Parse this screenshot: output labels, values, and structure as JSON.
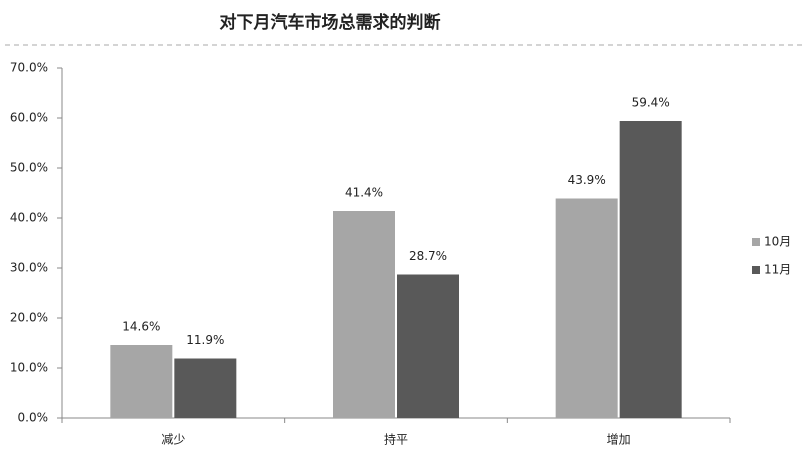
{
  "chart_data": {
    "type": "bar",
    "title": "对下月汽车市场总需求的判断",
    "categories": [
      "减少",
      "持平",
      "增加"
    ],
    "series": [
      {
        "name": "10月",
        "color": "#a6a6a6",
        "values": [
          14.6,
          41.4,
          43.9
        ],
        "value_labels": [
          "14.6%",
          "41.4%",
          "43.9%"
        ]
      },
      {
        "name": "11月",
        "color": "#595959",
        "values": [
          11.9,
          28.7,
          59.4
        ],
        "value_labels": [
          "11.9%",
          "28.7%",
          "59.4%"
        ]
      }
    ],
    "ylim": [
      0,
      70
    ],
    "yticks": [
      {
        "value": 0,
        "label": "0.0%"
      },
      {
        "value": 10,
        "label": "10.0%"
      },
      {
        "value": 20,
        "label": "20.0%"
      },
      {
        "value": 30,
        "label": "30.0%"
      },
      {
        "value": 40,
        "label": "40.0%"
      },
      {
        "value": 50,
        "label": "50.0%"
      },
      {
        "value": 60,
        "label": "60.0%"
      },
      {
        "value": 70,
        "label": "70.0%"
      }
    ],
    "grid": false,
    "legend": "right"
  }
}
